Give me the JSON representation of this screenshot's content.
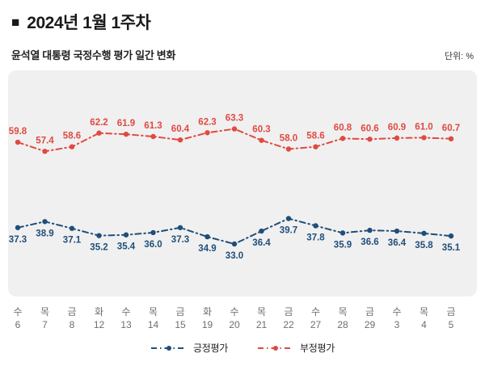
{
  "header": {
    "bullet": "■",
    "title": "2024년 1월 1주차",
    "subtitle": "윤석열 대통령 국정수행 평가 일간 변화",
    "unit_label": "단위: %"
  },
  "chart_data": {
    "type": "line",
    "title": "윤석열 대통령 국정수행 평가 일간 변화",
    "unit": "%",
    "categories_day": [
      "수",
      "목",
      "금",
      "화",
      "수",
      "목",
      "금",
      "화",
      "수",
      "목",
      "금",
      "수",
      "목",
      "금",
      "수",
      "목",
      "금"
    ],
    "categories_date": [
      "6",
      "7",
      "8",
      "12",
      "13",
      "14",
      "15",
      "19",
      "20",
      "21",
      "22",
      "27",
      "28",
      "29",
      "3",
      "4",
      "5"
    ],
    "series": [
      {
        "name": "긍정평가",
        "color": "#1f4e7a",
        "label_position": "below",
        "values": [
          37.3,
          38.9,
          37.1,
          35.2,
          35.4,
          36.0,
          37.3,
          34.9,
          33.0,
          36.4,
          39.7,
          37.8,
          35.9,
          36.6,
          36.4,
          35.8,
          35.1
        ]
      },
      {
        "name": "부정평가",
        "color": "#e04a41",
        "label_position": "above",
        "values": [
          59.8,
          57.4,
          58.6,
          62.2,
          61.9,
          61.3,
          60.4,
          62.3,
          63.3,
          60.3,
          58.0,
          58.6,
          60.8,
          60.6,
          60.9,
          61.0,
          60.7
        ]
      }
    ],
    "ylim": [
      30,
      70
    ],
    "grid": false,
    "legend_position": "bottom",
    "panel_color": "#f0f0f0"
  }
}
